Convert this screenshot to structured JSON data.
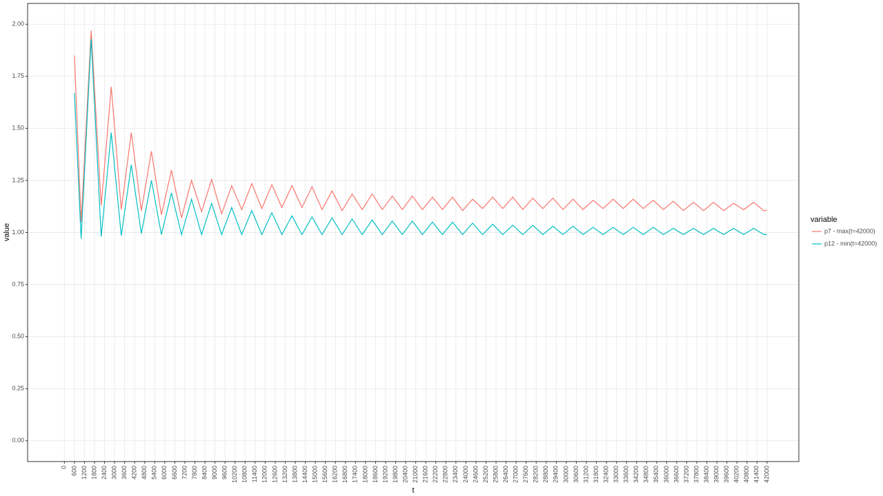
{
  "chart_data": {
    "type": "line",
    "x_label": "t",
    "y_label": "value",
    "legend_title": "variable",
    "legend_position": "right",
    "grid": true,
    "xlim": [
      -2200,
      43900
    ],
    "ylim": [
      -0.1,
      2.1
    ],
    "xticks": [
      0,
      600,
      1200,
      1800,
      2400,
      3000,
      3600,
      4200,
      4800,
      5400,
      6000,
      6600,
      7200,
      7800,
      8400,
      9000,
      9600,
      10200,
      10800,
      11400,
      12000,
      12600,
      13200,
      13800,
      14400,
      15000,
      15600,
      16200,
      16800,
      17400,
      18000,
      18600,
      19200,
      19800,
      20400,
      21000,
      21600,
      22200,
      22800,
      23400,
      24000,
      24600,
      25200,
      25800,
      26400,
      27000,
      27600,
      28200,
      28800,
      29400,
      30000,
      30600,
      31200,
      31800,
      32400,
      33000,
      33600,
      34200,
      34800,
      35400,
      36000,
      36600,
      37200,
      37800,
      38400,
      39000,
      39600,
      40200,
      40800,
      41400,
      42000
    ],
    "yticks": [
      {
        "value": 0,
        "label": "0.00"
      },
      {
        "value": 0.25,
        "label": "0.25"
      },
      {
        "value": 0.5,
        "label": "0.50"
      },
      {
        "value": 0.75,
        "label": "0.75"
      },
      {
        "value": 1,
        "label": "1.00"
      },
      {
        "value": 1.25,
        "label": "1.25"
      },
      {
        "value": 1.5,
        "label": "1.50"
      },
      {
        "value": 1.75,
        "label": "1.75"
      },
      {
        "value": 2,
        "label": "2.00"
      }
    ],
    "x": [
      600,
      1000,
      1600,
      2200,
      2800,
      3400,
      4000,
      4600,
      5200,
      5800,
      6400,
      7000,
      7600,
      8200,
      8800,
      9400,
      10000,
      10600,
      11200,
      11800,
      12400,
      13000,
      13600,
      14200,
      14800,
      15400,
      16000,
      16600,
      17200,
      17800,
      18400,
      19000,
      19600,
      20200,
      20800,
      21400,
      22000,
      22600,
      23200,
      23800,
      24400,
      25000,
      25600,
      26200,
      26800,
      27400,
      28000,
      28600,
      29200,
      29800,
      30400,
      31000,
      31600,
      32200,
      32800,
      33400,
      34000,
      34600,
      35200,
      35800,
      36400,
      37000,
      37600,
      38200,
      38800,
      39400,
      40000,
      40600,
      41200,
      41800,
      42000
    ],
    "series": [
      {
        "name": "p7 - max(t=42000)",
        "color": "#f8766d",
        "values": [
          1.85,
          1.05,
          1.97,
          1.13,
          1.7,
          1.11,
          1.48,
          1.105,
          1.39,
          1.085,
          1.3,
          1.07,
          1.25,
          1.1,
          1.255,
          1.09,
          1.225,
          1.11,
          1.235,
          1.115,
          1.23,
          1.12,
          1.225,
          1.12,
          1.22,
          1.11,
          1.2,
          1.105,
          1.185,
          1.11,
          1.185,
          1.11,
          1.175,
          1.11,
          1.175,
          1.11,
          1.17,
          1.11,
          1.17,
          1.105,
          1.16,
          1.115,
          1.17,
          1.115,
          1.17,
          1.11,
          1.165,
          1.115,
          1.165,
          1.11,
          1.16,
          1.11,
          1.155,
          1.115,
          1.16,
          1.115,
          1.16,
          1.115,
          1.155,
          1.11,
          1.15,
          1.105,
          1.145,
          1.105,
          1.145,
          1.105,
          1.14,
          1.11,
          1.145,
          1.105,
          1.107
        ]
      },
      {
        "name": "p12 - min(t=42000)",
        "color": "#00bfc4",
        "values": [
          1.67,
          0.97,
          1.93,
          0.98,
          1.48,
          0.985,
          1.325,
          0.995,
          1.25,
          0.99,
          1.19,
          0.99,
          1.16,
          0.99,
          1.14,
          0.99,
          1.12,
          0.99,
          1.105,
          0.99,
          1.095,
          0.99,
          1.08,
          0.99,
          1.075,
          0.99,
          1.07,
          0.99,
          1.065,
          0.99,
          1.06,
          0.99,
          1.055,
          0.99,
          1.055,
          0.99,
          1.05,
          0.99,
          1.05,
          0.99,
          1.045,
          0.99,
          1.04,
          0.99,
          1.035,
          0.99,
          1.035,
          0.99,
          1.03,
          0.99,
          1.03,
          0.99,
          1.025,
          0.99,
          1.025,
          0.99,
          1.025,
          0.99,
          1.025,
          0.99,
          1.02,
          0.99,
          1.02,
          0.99,
          1.02,
          0.99,
          1.02,
          0.99,
          1.02,
          0.99,
          0.99
        ]
      }
    ]
  }
}
